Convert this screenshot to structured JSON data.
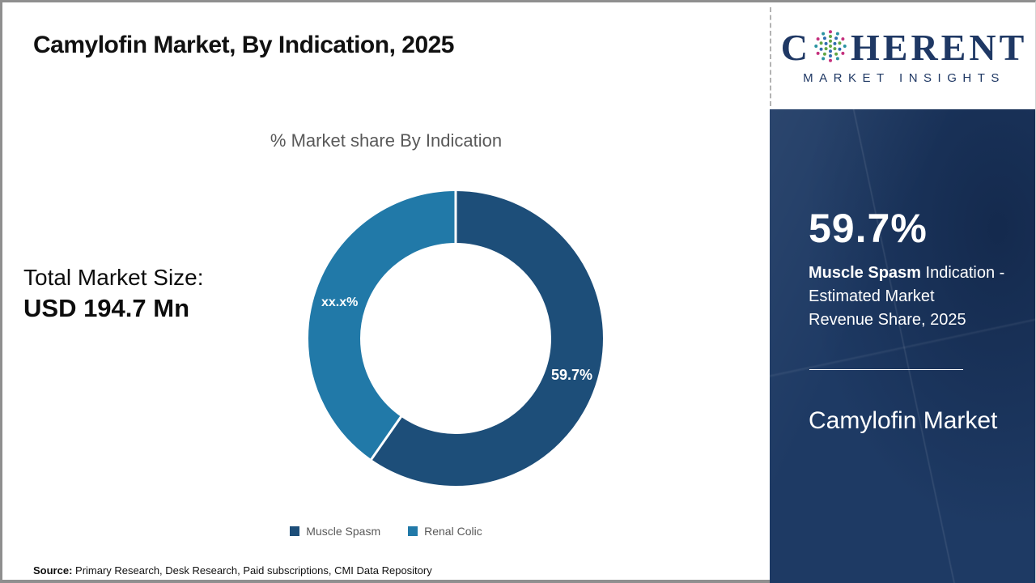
{
  "slide": {
    "title": "Camylofin Market, By Indication, 2025",
    "source_label": "Source:",
    "source_text": " Primary Research, Desk Research, Paid subscriptions, CMI Data Repository"
  },
  "logo": {
    "word_start": "C",
    "word_end": "HERENT",
    "subtitle": "MARKET INSIGHTS",
    "globe_icon": "dotted-globe",
    "globe_colors": [
      "#c5317e",
      "#2a93a0",
      "#61a744",
      "#2f6db0"
    ],
    "brand_color": "#1f3864"
  },
  "total_market": {
    "label": "Total Market Size:",
    "value": "USD 194.7 Mn"
  },
  "chart_data": {
    "type": "pie",
    "donut": true,
    "title": "% Market share By Indication",
    "categories": [
      "Muscle Spasm",
      "Renal Colic"
    ],
    "values": [
      59.7,
      40.3
    ],
    "slice_labels": [
      "59.7%",
      "xx.x%"
    ],
    "colors": [
      "#1d4e79",
      "#2179a8"
    ],
    "legend_position": "bottom"
  },
  "sidebar": {
    "stat_value": "59.7%",
    "desc_bold": "Muscle Spasm",
    "desc_line1_rest": " Indication -",
    "desc_line2": "Estimated Market",
    "desc_line3": "Revenue Share, 2025",
    "product": "Camylofin Market",
    "bg_color": "#1e3a64"
  }
}
